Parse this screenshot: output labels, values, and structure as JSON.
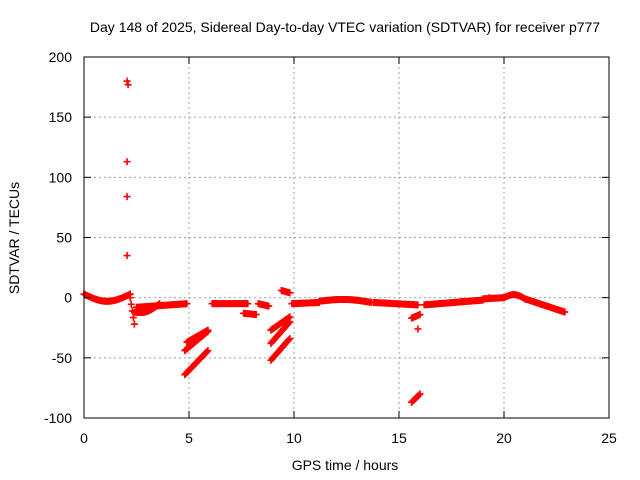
{
  "chart_data": {
    "type": "scatter",
    "title": "Day 148 of 2025, Sidereal Day-to-day VTEC variation (SDTVAR) for receiver p777",
    "xlabel": "GPS time / hours",
    "ylabel": "SDTVAR / TECUs",
    "xlim": [
      0,
      25
    ],
    "ylim": [
      -100,
      200
    ],
    "xticks": [
      "0",
      "5",
      "10",
      "15",
      "20",
      "25"
    ],
    "yticks": [
      "200",
      "150",
      "100",
      "50",
      "0",
      "-50",
      "-100"
    ],
    "grid": true,
    "marker": "+",
    "color": "#ff0000",
    "series": [
      {
        "name": "SDTVAR",
        "segments": [
          {
            "x0": 0.0,
            "x1": 2.2,
            "y0": 3,
            "y1": 3,
            "curve": -6
          },
          {
            "x0": 2.2,
            "x1": 2.4,
            "y0": 0,
            "y1": -22,
            "curve": 0
          },
          {
            "x0": 2.4,
            "x1": 3.6,
            "y0": -12,
            "y1": -5,
            "curve": -3
          },
          {
            "x0": 2.5,
            "x1": 4.9,
            "y0": -8,
            "y1": -5,
            "curve": 0
          },
          {
            "x0": 4.8,
            "x1": 5.9,
            "y0": -44,
            "y1": -28,
            "curve": 0
          },
          {
            "x0": 4.9,
            "x1": 5.9,
            "y0": -37,
            "y1": -27,
            "curve": 0
          },
          {
            "x0": 4.8,
            "x1": 5.9,
            "y0": -64,
            "y1": -44,
            "curve": 0
          },
          {
            "x0": 6.1,
            "x1": 7.8,
            "y0": -5,
            "y1": -5,
            "curve": 0
          },
          {
            "x0": 7.6,
            "x1": 8.2,
            "y0": -13,
            "y1": -14,
            "curve": 0
          },
          {
            "x0": 8.3,
            "x1": 8.8,
            "y0": -5,
            "y1": -7,
            "curve": 0
          },
          {
            "x0": 8.9,
            "x1": 9.8,
            "y0": -27,
            "y1": -16,
            "curve": 0
          },
          {
            "x0": 8.9,
            "x1": 9.8,
            "y0": -38,
            "y1": -20,
            "curve": 0
          },
          {
            "x0": 8.9,
            "x1": 9.8,
            "y0": -52,
            "y1": -34,
            "curve": 0
          },
          {
            "x0": 9.4,
            "x1": 9.8,
            "y0": 6,
            "y1": 4,
            "curve": 0
          },
          {
            "x0": 9.9,
            "x1": 11.2,
            "y0": -5,
            "y1": -4,
            "curve": 0
          },
          {
            "x0": 11.2,
            "x1": 13.7,
            "y0": -3,
            "y1": -4,
            "curve": 2
          },
          {
            "x0": 13.8,
            "x1": 15.9,
            "y0": -4,
            "y1": -6,
            "curve": 0
          },
          {
            "x0": 15.6,
            "x1": 16.0,
            "y0": -17,
            "y1": -14,
            "curve": 0
          },
          {
            "x0": 15.6,
            "x1": 16.0,
            "y0": -87,
            "y1": -80,
            "curve": 0
          },
          {
            "x0": 16.2,
            "x1": 19.0,
            "y0": -6,
            "y1": -2,
            "curve": 0
          },
          {
            "x0": 19.0,
            "x1": 20.0,
            "y0": -1,
            "y1": 0,
            "curve": 0
          },
          {
            "x0": 20.0,
            "x1": 21.0,
            "y0": 0,
            "y1": -1,
            "curve": 3
          },
          {
            "x0": 21.0,
            "x1": 22.9,
            "y0": -1,
            "y1": -12,
            "curve": 0
          }
        ],
        "points": [
          {
            "x": 2.05,
            "y": 180
          },
          {
            "x": 2.1,
            "y": 177
          },
          {
            "x": 2.05,
            "y": 113
          },
          {
            "x": 2.05,
            "y": 84
          },
          {
            "x": 2.05,
            "y": 35
          },
          {
            "x": 15.9,
            "y": -26
          },
          {
            "x": 18.0,
            "y": -3
          },
          {
            "x": 19.3,
            "y": 0
          }
        ]
      }
    ]
  }
}
